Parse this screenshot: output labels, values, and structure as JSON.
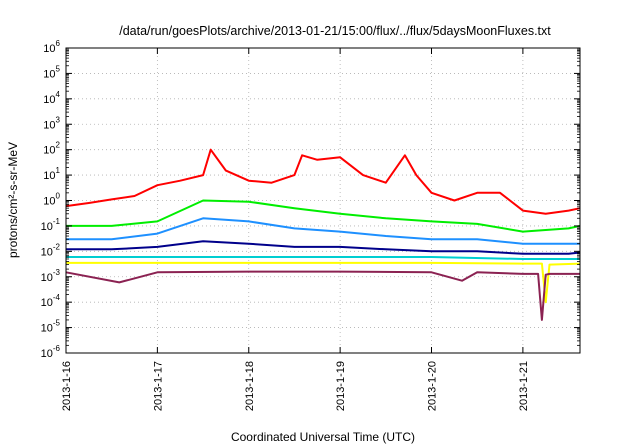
{
  "chart_data": {
    "type": "line",
    "title": "/data/run/goesPlots/archive/2013-01-21/15:00/flux/../flux/5daysMoonFluxes.txt",
    "xlabel": "Coordinated Universal Time (UTC)",
    "ylabel": "protons/cm²-s-sr-MeV",
    "yscale": "log",
    "ylim": [
      1e-06,
      1000000.0
    ],
    "xlim": [
      "2013-01-16 00:00",
      "2013-01-21 15:00"
    ],
    "xticks": [
      "2013-1-16",
      "2013-1-17",
      "2013-1-18",
      "2013-1-19",
      "2013-1-20",
      "2013-1-21"
    ],
    "yticks": [
      {
        "base": "10",
        "exp": "-6"
      },
      {
        "base": "10",
        "exp": "-5"
      },
      {
        "base": "10",
        "exp": "-4"
      },
      {
        "base": "10",
        "exp": "-3"
      },
      {
        "base": "10",
        "exp": "-2"
      },
      {
        "base": "10",
        "exp": "-1"
      },
      {
        "base": "10",
        "exp": "0"
      },
      {
        "base": "10",
        "exp": "1"
      },
      {
        "base": "10",
        "exp": "2"
      },
      {
        "base": "10",
        "exp": "3"
      },
      {
        "base": "10",
        "exp": "4"
      },
      {
        "base": "10",
        "exp": "5"
      },
      {
        "base": "10",
        "exp": "6"
      }
    ],
    "grid": true,
    "series": [
      {
        "color": "#ff0000",
        "x": [
          "2013-01-16 00:00",
          "2013-01-16 06:00",
          "2013-01-16 12:00",
          "2013-01-16 18:00",
          "2013-01-17 00:00",
          "2013-01-17 06:00",
          "2013-01-17 12:00",
          "2013-01-17 14:00",
          "2013-01-17 18:00",
          "2013-01-18 00:00",
          "2013-01-18 06:00",
          "2013-01-18 12:00",
          "2013-01-18 14:00",
          "2013-01-18 18:00",
          "2013-01-19 00:00",
          "2013-01-19 06:00",
          "2013-01-19 12:00",
          "2013-01-19 17:00",
          "2013-01-19 20:00",
          "2013-01-20 00:00",
          "2013-01-20 06:00",
          "2013-01-20 12:00",
          "2013-01-20 18:00",
          "2013-01-21 00:00",
          "2013-01-21 06:00",
          "2013-01-21 12:00",
          "2013-01-21 15:00"
        ],
        "y": [
          0.6,
          0.8,
          1.1,
          1.5,
          4,
          6,
          10,
          100,
          15,
          6,
          5,
          10,
          60,
          40,
          50,
          10,
          5,
          60,
          10,
          2,
          1,
          2,
          2,
          0.4,
          0.3,
          0.4,
          0.5
        ]
      },
      {
        "color": "#00ee00",
        "x": [
          "2013-01-16 00:00",
          "2013-01-16 12:00",
          "2013-01-17 00:00",
          "2013-01-17 12:00",
          "2013-01-18 00:00",
          "2013-01-18 12:00",
          "2013-01-19 00:00",
          "2013-01-19 12:00",
          "2013-01-20 00:00",
          "2013-01-20 12:00",
          "2013-01-21 00:00",
          "2013-01-21 12:00",
          "2013-01-21 15:00"
        ],
        "y": [
          0.1,
          0.1,
          0.15,
          1.0,
          0.9,
          0.5,
          0.3,
          0.2,
          0.15,
          0.12,
          0.06,
          0.08,
          0.1
        ]
      },
      {
        "color": "#1e90ff",
        "x": [
          "2013-01-16 00:00",
          "2013-01-16 12:00",
          "2013-01-17 00:00",
          "2013-01-17 12:00",
          "2013-01-18 00:00",
          "2013-01-18 12:00",
          "2013-01-19 00:00",
          "2013-01-19 12:00",
          "2013-01-20 00:00",
          "2013-01-20 12:00",
          "2013-01-21 00:00",
          "2013-01-21 12:00",
          "2013-01-21 15:00"
        ],
        "y": [
          0.03,
          0.03,
          0.05,
          0.2,
          0.15,
          0.08,
          0.06,
          0.04,
          0.03,
          0.03,
          0.02,
          0.02,
          0.02
        ]
      },
      {
        "color": "#00008b",
        "x": [
          "2013-01-16 00:00",
          "2013-01-16 12:00",
          "2013-01-17 00:00",
          "2013-01-17 12:00",
          "2013-01-18 00:00",
          "2013-01-18 12:00",
          "2013-01-19 00:00",
          "2013-01-19 12:00",
          "2013-01-20 00:00",
          "2013-01-20 12:00",
          "2013-01-21 00:00",
          "2013-01-21 12:00",
          "2013-01-21 15:00"
        ],
        "y": [
          0.012,
          0.012,
          0.015,
          0.025,
          0.02,
          0.015,
          0.015,
          0.012,
          0.01,
          0.01,
          0.008,
          0.008,
          0.009
        ]
      },
      {
        "color": "#00ced1",
        "x": [
          "2013-01-16 00:00",
          "2013-01-17 00:00",
          "2013-01-18 00:00",
          "2013-01-19 00:00",
          "2013-01-20 00:00",
          "2013-01-21 00:00",
          "2013-01-21 15:00"
        ],
        "y": [
          0.006,
          0.006,
          0.006,
          0.006,
          0.006,
          0.005,
          0.005
        ]
      },
      {
        "color": "#ffff00",
        "x": [
          "2013-01-16 00:00",
          "2013-01-17 00:00",
          "2013-01-18 00:00",
          "2013-01-19 00:00",
          "2013-01-20 00:00",
          "2013-01-21 00:00",
          "2013-01-21 05:00",
          "2013-01-21 06:00",
          "2013-01-21 07:00",
          "2013-01-21 15:00"
        ],
        "y": [
          0.0035,
          0.0035,
          0.0035,
          0.0035,
          0.0035,
          0.0033,
          0.0033,
          0.0001,
          0.003,
          0.0033
        ]
      },
      {
        "color": "#8b2252",
        "x": [
          "2013-01-16 00:00",
          "2013-01-16 14:00",
          "2013-01-17 00:00",
          "2013-01-18 00:00",
          "2013-01-19 00:00",
          "2013-01-20 00:00",
          "2013-01-20 08:00",
          "2013-01-20 12:00",
          "2013-01-21 00:00",
          "2013-01-21 04:00",
          "2013-01-21 05:00",
          "2013-01-21 06:00",
          "2013-01-21 07:00",
          "2013-01-21 15:00"
        ],
        "y": [
          0.0015,
          0.0006,
          0.0015,
          0.0016,
          0.0016,
          0.0015,
          0.0007,
          0.0015,
          0.0013,
          0.0013,
          2e-05,
          0.0012,
          0.0013,
          0.0013
        ]
      }
    ]
  }
}
